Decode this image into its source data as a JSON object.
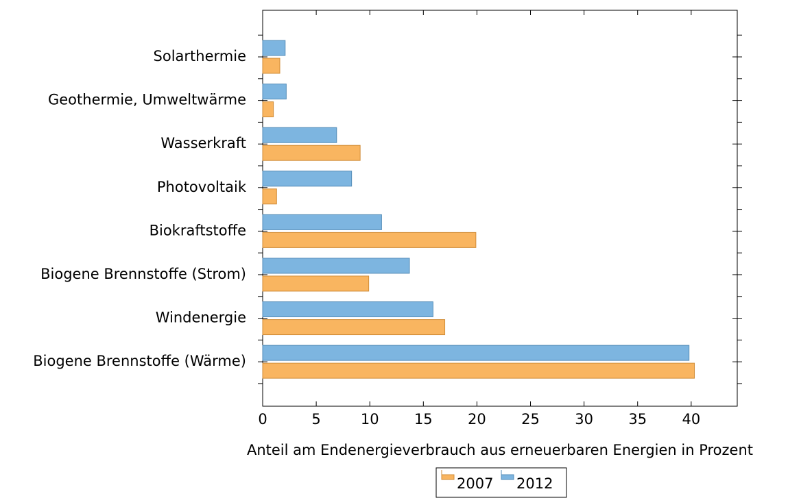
{
  "chart_data": {
    "type": "hbar",
    "xlabel": "Anteil am Endenergieverbrauch aus erneuerbaren Energien in Prozent",
    "categories": [
      "Biogene Brennstoffe (Wärme)",
      "Windenergie",
      "Biogene Brennstoffe (Strom)",
      "Biokraftstoffe",
      "Photovoltaik",
      "Wasserkraft",
      "Geothermie, Umweltwärme",
      "Solarthermie"
    ],
    "series": [
      {
        "name": "2007",
        "color": "#f9b560",
        "values": [
          40.3,
          17.0,
          9.9,
          19.9,
          1.3,
          9.1,
          1.0,
          1.6
        ]
      },
      {
        "name": "2012",
        "color": "#7db5e0",
        "values": [
          39.8,
          15.9,
          13.7,
          11.1,
          8.3,
          6.9,
          2.2,
          2.1
        ]
      }
    ],
    "xlim": [
      0,
      44.3
    ],
    "xticks": [
      0,
      5,
      10,
      15,
      20,
      25,
      30,
      35,
      40
    ]
  }
}
